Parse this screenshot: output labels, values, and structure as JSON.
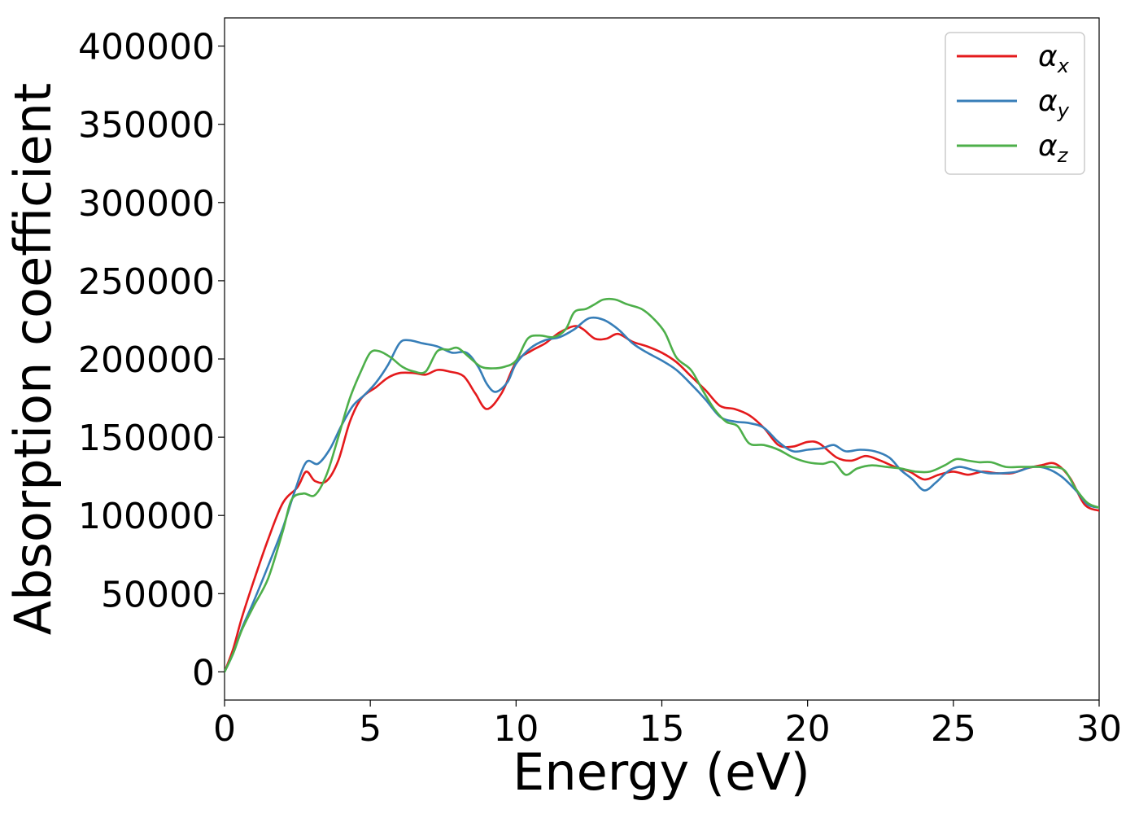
{
  "chart_data": {
    "type": "line",
    "title": "",
    "xlabel": "Energy (eV)",
    "ylabel": "Absorption coefficient",
    "xlim": [
      0,
      30
    ],
    "ylim": [
      -18000,
      418000
    ],
    "xticks": [
      0,
      5,
      10,
      15,
      20,
      25,
      30
    ],
    "yticks": [
      0,
      50000,
      100000,
      150000,
      200000,
      250000,
      300000,
      350000,
      400000
    ],
    "grid": false,
    "legend_position": "top-right",
    "series": [
      {
        "name": "α",
        "subscript": "x",
        "color": "#e41a1c",
        "points": [
          [
            0,
            0
          ],
          [
            0.3,
            15000
          ],
          [
            0.6,
            35000
          ],
          [
            1.0,
            58000
          ],
          [
            1.5,
            85000
          ],
          [
            2.0,
            108000
          ],
          [
            2.5,
            118000
          ],
          [
            2.8,
            128000
          ],
          [
            3.1,
            122000
          ],
          [
            3.5,
            122000
          ],
          [
            3.9,
            135000
          ],
          [
            4.3,
            160000
          ],
          [
            4.7,
            175000
          ],
          [
            5.2,
            182000
          ],
          [
            5.6,
            188000
          ],
          [
            6.0,
            191000
          ],
          [
            6.5,
            191000
          ],
          [
            6.9,
            190000
          ],
          [
            7.3,
            193000
          ],
          [
            7.7,
            192000
          ],
          [
            8.2,
            189000
          ],
          [
            8.6,
            178000
          ],
          [
            9.0,
            168000
          ],
          [
            9.5,
            178000
          ],
          [
            10.0,
            198000
          ],
          [
            10.5,
            205000
          ],
          [
            11.0,
            210000
          ],
          [
            11.5,
            217000
          ],
          [
            12.0,
            221000
          ],
          [
            12.3,
            219000
          ],
          [
            12.7,
            213000
          ],
          [
            13.1,
            213000
          ],
          [
            13.5,
            216000
          ],
          [
            14.0,
            211000
          ],
          [
            14.5,
            208000
          ],
          [
            15.0,
            204000
          ],
          [
            15.5,
            198000
          ],
          [
            16.0,
            189000
          ],
          [
            16.5,
            180000
          ],
          [
            17.0,
            170000
          ],
          [
            17.5,
            168000
          ],
          [
            18.0,
            164000
          ],
          [
            18.5,
            156000
          ],
          [
            19.0,
            145000
          ],
          [
            19.5,
            144000
          ],
          [
            20.0,
            147000
          ],
          [
            20.4,
            146000
          ],
          [
            21.0,
            137000
          ],
          [
            21.5,
            135000
          ],
          [
            22.0,
            138000
          ],
          [
            22.5,
            135000
          ],
          [
            23.0,
            131000
          ],
          [
            23.5,
            128000
          ],
          [
            24.0,
            123000
          ],
          [
            24.5,
            126000
          ],
          [
            25.0,
            128000
          ],
          [
            25.5,
            126000
          ],
          [
            26.0,
            128000
          ],
          [
            26.5,
            127000
          ],
          [
            27.0,
            127000
          ],
          [
            27.5,
            130000
          ],
          [
            28.0,
            132000
          ],
          [
            28.5,
            133000
          ],
          [
            29.0,
            124000
          ],
          [
            29.5,
            107000
          ],
          [
            30.0,
            103000
          ]
        ]
      },
      {
        "name": "α",
        "subscript": "y",
        "color": "#377eb8",
        "points": [
          [
            0,
            0
          ],
          [
            0.3,
            12000
          ],
          [
            0.6,
            28000
          ],
          [
            1.0,
            45000
          ],
          [
            1.5,
            68000
          ],
          [
            2.0,
            92000
          ],
          [
            2.4,
            115000
          ],
          [
            2.8,
            134000
          ],
          [
            3.2,
            133000
          ],
          [
            3.6,
            142000
          ],
          [
            4.0,
            157000
          ],
          [
            4.4,
            170000
          ],
          [
            4.8,
            177000
          ],
          [
            5.2,
            185000
          ],
          [
            5.6,
            196000
          ],
          [
            6.0,
            210000
          ],
          [
            6.3,
            212000
          ],
          [
            6.8,
            210000
          ],
          [
            7.3,
            208000
          ],
          [
            7.8,
            204000
          ],
          [
            8.3,
            204000
          ],
          [
            8.7,
            195000
          ],
          [
            9.0,
            184000
          ],
          [
            9.3,
            179000
          ],
          [
            9.7,
            185000
          ],
          [
            10.0,
            197000
          ],
          [
            10.5,
            207000
          ],
          [
            11.0,
            212000
          ],
          [
            11.5,
            214000
          ],
          [
            12.0,
            219000
          ],
          [
            12.5,
            226000
          ],
          [
            13.0,
            225000
          ],
          [
            13.5,
            219000
          ],
          [
            14.0,
            210000
          ],
          [
            14.5,
            204000
          ],
          [
            15.0,
            199000
          ],
          [
            15.5,
            193000
          ],
          [
            16.0,
            184000
          ],
          [
            16.5,
            174000
          ],
          [
            17.0,
            163000
          ],
          [
            17.5,
            160000
          ],
          [
            18.0,
            159000
          ],
          [
            18.5,
            156000
          ],
          [
            19.0,
            147000
          ],
          [
            19.5,
            141000
          ],
          [
            20.0,
            142000
          ],
          [
            20.5,
            143000
          ],
          [
            20.9,
            145000
          ],
          [
            21.3,
            141000
          ],
          [
            21.8,
            142000
          ],
          [
            22.3,
            141000
          ],
          [
            22.8,
            137000
          ],
          [
            23.2,
            129000
          ],
          [
            23.6,
            123000
          ],
          [
            24.0,
            116000
          ],
          [
            24.4,
            121000
          ],
          [
            24.8,
            128000
          ],
          [
            25.2,
            131000
          ],
          [
            25.7,
            129000
          ],
          [
            26.2,
            127000
          ],
          [
            26.7,
            127000
          ],
          [
            27.2,
            128000
          ],
          [
            27.7,
            131000
          ],
          [
            28.2,
            130000
          ],
          [
            28.7,
            125000
          ],
          [
            29.2,
            116000
          ],
          [
            29.6,
            107000
          ],
          [
            30.0,
            105000
          ]
        ]
      },
      {
        "name": "α",
        "subscript": "z",
        "color": "#4daf4a",
        "points": [
          [
            0,
            0
          ],
          [
            0.3,
            12000
          ],
          [
            0.6,
            27000
          ],
          [
            1.0,
            42000
          ],
          [
            1.5,
            60000
          ],
          [
            2.0,
            90000
          ],
          [
            2.3,
            110000
          ],
          [
            2.7,
            114000
          ],
          [
            3.1,
            113000
          ],
          [
            3.5,
            126000
          ],
          [
            3.9,
            150000
          ],
          [
            4.3,
            175000
          ],
          [
            4.7,
            193000
          ],
          [
            5.0,
            204000
          ],
          [
            5.3,
            205000
          ],
          [
            5.7,
            201000
          ],
          [
            6.1,
            195000
          ],
          [
            6.5,
            192000
          ],
          [
            6.9,
            192000
          ],
          [
            7.3,
            205000
          ],
          [
            7.7,
            206000
          ],
          [
            8.0,
            207000
          ],
          [
            8.4,
            201000
          ],
          [
            8.8,
            195000
          ],
          [
            9.2,
            194000
          ],
          [
            9.6,
            195000
          ],
          [
            10.0,
            199000
          ],
          [
            10.4,
            213000
          ],
          [
            10.8,
            215000
          ],
          [
            11.3,
            214000
          ],
          [
            11.7,
            219000
          ],
          [
            12.0,
            230000
          ],
          [
            12.4,
            232000
          ],
          [
            12.7,
            235000
          ],
          [
            13.0,
            238000
          ],
          [
            13.4,
            238000
          ],
          [
            13.8,
            235000
          ],
          [
            14.3,
            232000
          ],
          [
            14.7,
            226000
          ],
          [
            15.1,
            217000
          ],
          [
            15.5,
            201000
          ],
          [
            16.0,
            193000
          ],
          [
            16.4,
            180000
          ],
          [
            16.8,
            168000
          ],
          [
            17.2,
            160000
          ],
          [
            17.6,
            157000
          ],
          [
            18.0,
            146000
          ],
          [
            18.5,
            145000
          ],
          [
            19.0,
            142000
          ],
          [
            19.5,
            137000
          ],
          [
            20.0,
            134000
          ],
          [
            20.5,
            133000
          ],
          [
            20.9,
            134000
          ],
          [
            21.3,
            126000
          ],
          [
            21.7,
            130000
          ],
          [
            22.2,
            132000
          ],
          [
            22.7,
            131000
          ],
          [
            23.2,
            130000
          ],
          [
            23.7,
            128000
          ],
          [
            24.2,
            128000
          ],
          [
            24.7,
            132000
          ],
          [
            25.1,
            136000
          ],
          [
            25.5,
            135000
          ],
          [
            25.9,
            134000
          ],
          [
            26.3,
            134000
          ],
          [
            26.8,
            131000
          ],
          [
            27.3,
            131000
          ],
          [
            27.8,
            131000
          ],
          [
            28.3,
            131000
          ],
          [
            28.8,
            129000
          ],
          [
            29.2,
            117000
          ],
          [
            29.6,
            108000
          ],
          [
            30.0,
            105000
          ]
        ]
      }
    ]
  }
}
